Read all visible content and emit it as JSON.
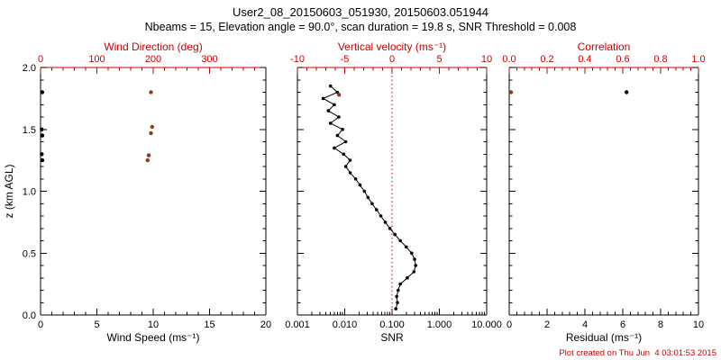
{
  "page": {
    "title": "User2_08_20150603_051930, 20150603.051944",
    "subtitle": "Nbeams = 15, Elevation angle = 90.0°, scan duration = 19.8 s, SNR Threshold = 0.008",
    "footer": "Plot created on Thu Jun  4 03:01:53 2015"
  },
  "colors": {
    "axis_red": "#cc0000",
    "marker_red": "#993322",
    "marker_black": "#000000",
    "background": "#ffffff"
  },
  "chart_data": [
    {
      "type": "scatter",
      "name": "wind-panel",
      "y_axis": {
        "label": "z (km AGL)",
        "range": [
          0,
          2
        ],
        "ticks": [
          0.0,
          0.5,
          1.0,
          1.5,
          2.0
        ],
        "tick_labels": [
          "0.0",
          "0.5",
          "1.0",
          "1.5",
          "2.0"
        ],
        "show_tick_labels": true
      },
      "bottom_axis": {
        "label": "Wind Speed (ms⁻¹)",
        "scale": "linear",
        "range": [
          0,
          20
        ],
        "ticks": [
          0,
          5,
          10,
          15,
          20
        ],
        "tick_labels": [
          "0",
          "5",
          "10",
          "15",
          "20"
        ]
      },
      "top_axis": {
        "label": "Wind Direction (deg)",
        "scale": "linear",
        "range": [
          0,
          400
        ],
        "ticks": [
          0,
          100,
          200,
          300
        ],
        "tick_labels": [
          "0",
          "100",
          "200",
          "300"
        ],
        "color": "#cc0000"
      },
      "series": [
        {
          "name": "wind-speed-points",
          "axis": "bottom",
          "color": "#000000",
          "line": false,
          "points": [
            [
              0.15,
              1.8
            ],
            [
              0.1,
              1.5
            ],
            [
              0.15,
              1.45
            ],
            [
              0.1,
              1.3
            ],
            [
              0.15,
              1.25
            ]
          ]
        },
        {
          "name": "wind-direction-points",
          "axis": "top",
          "color": "#993322",
          "line": false,
          "points": [
            [
              196,
              1.8
            ],
            [
              198,
              1.52
            ],
            [
              196,
              1.47
            ],
            [
              192,
              1.29
            ],
            [
              190,
              1.25
            ]
          ]
        }
      ]
    },
    {
      "type": "line",
      "name": "snr-panel",
      "y_axis": {
        "label": "",
        "range": [
          0,
          2
        ],
        "ticks": [
          0.0,
          0.5,
          1.0,
          1.5,
          2.0
        ],
        "tick_labels": [
          "0.0",
          "0.5",
          "1.0",
          "1.5",
          "2.0"
        ],
        "show_tick_labels": false
      },
      "bottom_axis": {
        "label": "SNR",
        "scale": "log",
        "range": [
          0.001,
          10
        ],
        "ticks": [
          0.001,
          0.01,
          0.1,
          1,
          10
        ],
        "tick_labels": [
          "0.001",
          "0.010",
          "0.100",
          "1.000",
          "10.000"
        ]
      },
      "top_axis": {
        "label": "Vertical velocity (ms⁻¹)",
        "scale": "linear",
        "range": [
          -10,
          10
        ],
        "ticks": [
          -10,
          -5,
          0,
          5,
          10
        ],
        "tick_labels": [
          "-10",
          "-5",
          "0",
          "5",
          "10"
        ],
        "color": "#cc0000"
      },
      "reference_line": {
        "axis": "top",
        "value": 0,
        "color": "#cc0000",
        "style": "dotted"
      },
      "series": [
        {
          "name": "snr-profile",
          "axis": "bottom",
          "color": "#000000",
          "line": true,
          "points": [
            [
              0.12,
              0.05
            ],
            [
              0.13,
              0.1
            ],
            [
              0.125,
              0.15
            ],
            [
              0.135,
              0.2
            ],
            [
              0.15,
              0.25
            ],
            [
              0.21,
              0.3
            ],
            [
              0.29,
              0.35
            ],
            [
              0.315,
              0.4
            ],
            [
              0.3,
              0.45
            ],
            [
              0.26,
              0.5
            ],
            [
              0.2,
              0.55
            ],
            [
              0.15,
              0.6
            ],
            [
              0.115,
              0.65
            ],
            [
              0.09,
              0.7
            ],
            [
              0.072,
              0.75
            ],
            [
              0.058,
              0.8
            ],
            [
              0.047,
              0.85
            ],
            [
              0.038,
              0.9
            ],
            [
              0.031,
              0.95
            ],
            [
              0.026,
              1.0
            ],
            [
              0.021,
              1.05
            ],
            [
              0.017,
              1.1
            ],
            [
              0.013,
              1.15
            ],
            [
              0.0105,
              1.2
            ],
            [
              0.013,
              1.25
            ],
            [
              0.0095,
              1.3
            ],
            [
              0.006,
              1.35
            ],
            [
              0.0105,
              1.4
            ],
            [
              0.007,
              1.45
            ],
            [
              0.009,
              1.5
            ],
            [
              0.005,
              1.55
            ],
            [
              0.0075,
              1.6
            ],
            [
              0.0045,
              1.65
            ],
            [
              0.006,
              1.7
            ],
            [
              0.0035,
              1.75
            ],
            [
              0.007,
              1.8
            ],
            [
              0.005,
              1.85
            ]
          ]
        },
        {
          "name": "vertical-velocity-points",
          "axis": "top",
          "color": "#993322",
          "line": false,
          "points": [
            [
              -5.6,
              1.78
            ]
          ]
        }
      ]
    },
    {
      "type": "scatter",
      "name": "residual-panel",
      "y_axis": {
        "label": "",
        "range": [
          0,
          2
        ],
        "ticks": [
          0.0,
          0.5,
          1.0,
          1.5,
          2.0
        ],
        "tick_labels": [
          "0.0",
          "0.5",
          "1.0",
          "1.5",
          "2.0"
        ],
        "show_tick_labels": false
      },
      "bottom_axis": {
        "label": "Residual (ms⁻¹)",
        "scale": "linear",
        "range": [
          0,
          10
        ],
        "ticks": [
          0,
          2,
          4,
          6,
          8,
          10
        ],
        "tick_labels": [
          "0",
          "2",
          "4",
          "6",
          "8",
          "10"
        ]
      },
      "top_axis": {
        "label": "Correlation",
        "scale": "linear",
        "range": [
          0,
          1
        ],
        "ticks": [
          0.0,
          0.2,
          0.4,
          0.6,
          0.8,
          1.0
        ],
        "tick_labels": [
          "0.0",
          "0.2",
          "0.4",
          "0.6",
          "0.8",
          "1.0"
        ],
        "color": "#cc0000"
      },
      "series": [
        {
          "name": "residual-points",
          "axis": "bottom",
          "color": "#000000",
          "line": false,
          "points": [
            [
              6.2,
              1.8
            ]
          ]
        },
        {
          "name": "correlation-points",
          "axis": "top",
          "color": "#993322",
          "line": false,
          "points": [
            [
              0.01,
              1.8
            ]
          ]
        }
      ]
    }
  ]
}
